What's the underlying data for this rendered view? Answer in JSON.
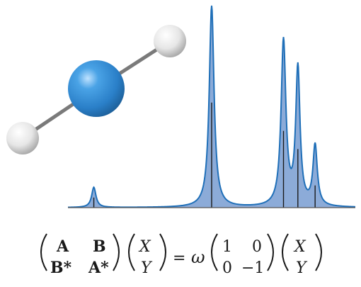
{
  "molecule": {
    "central_atom_color": "#2a84cc",
    "terminal_atom_color": "#e8e8e8",
    "bond_color": "#7a7a7a"
  },
  "spectrum": {
    "fill_color": "#86a6d6",
    "line_color": "#1f6fb8",
    "stick_color": "#1a1a1a",
    "axis_color": "#555555",
    "x_range": [
      0,
      100
    ],
    "y_range": [
      0,
      1
    ],
    "peaks": [
      {
        "x": 9.0,
        "height": 0.1,
        "width": 0.9
      },
      {
        "x": 50.0,
        "height": 1.0,
        "width": 1.0
      },
      {
        "x": 75.0,
        "height": 0.82,
        "width": 1.0
      },
      {
        "x": 80.0,
        "height": 0.68,
        "width": 0.9
      },
      {
        "x": 86.0,
        "height": 0.3,
        "width": 0.9
      }
    ],
    "sticks": [
      {
        "x": 9.0,
        "height": 0.05
      },
      {
        "x": 50.0,
        "height": 0.52
      },
      {
        "x": 75.0,
        "height": 0.38
      },
      {
        "x": 80.0,
        "height": 0.29
      },
      {
        "x": 86.0,
        "height": 0.11
      }
    ]
  },
  "equation": {
    "m11": "A",
    "m12": "B",
    "m21": "B*",
    "m22": "A*",
    "v1": "X",
    "v2": "Y",
    "equals": "=",
    "omega": "ω",
    "d11": "1",
    "d12": "0",
    "d21": "0",
    "d22": "−1",
    "r1": "X",
    "r2": "Y"
  }
}
